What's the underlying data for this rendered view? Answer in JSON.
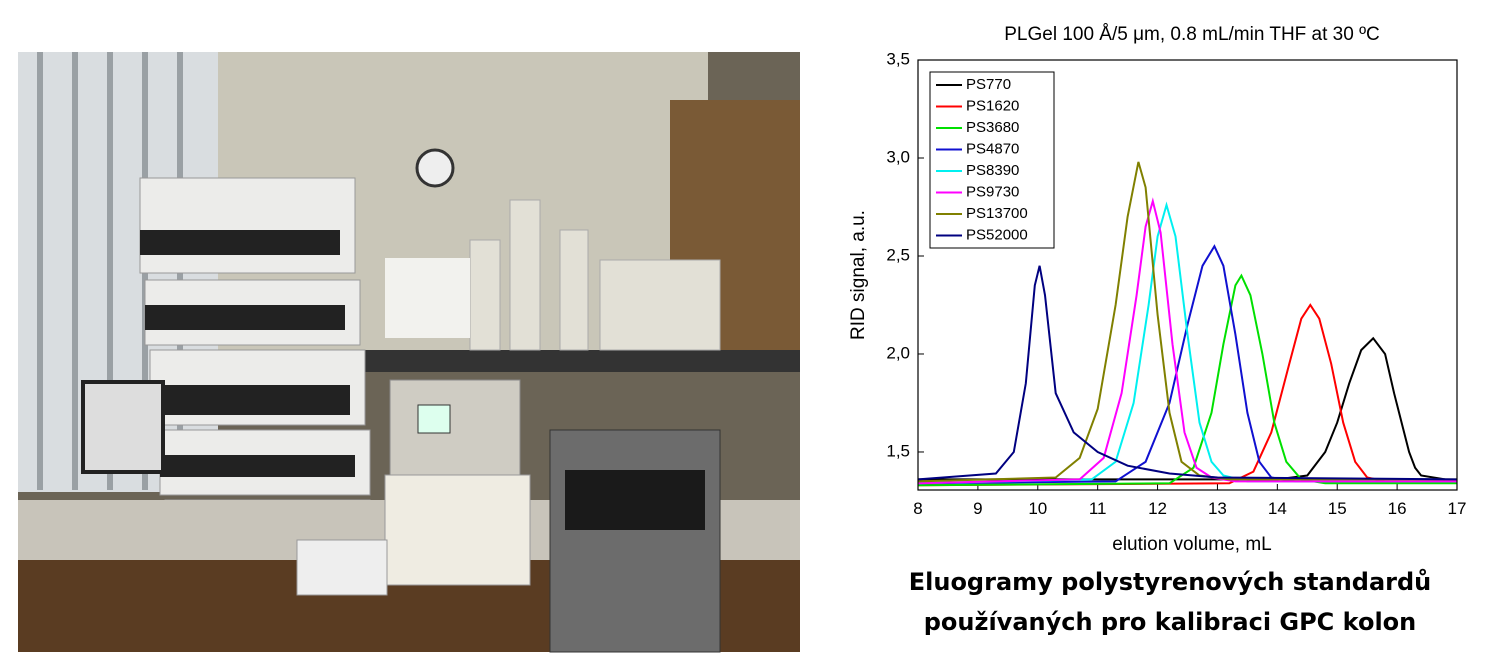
{
  "chart_data": {
    "type": "line",
    "title": "PLGel 100 Å/5 μm, 0.8 mL/min THF at 30 ºC",
    "x_label": "elution volume,  mL",
    "y_label": "RID signal,  a.u.",
    "xlim": [
      8,
      17
    ],
    "ylim": [
      1.306,
      3.5
    ],
    "xticks": [
      8,
      9,
      10,
      11,
      12,
      13,
      14,
      15,
      16,
      17
    ],
    "yticks": [
      {
        "value": 1.5,
        "label": "1,5"
      },
      {
        "value": 2.0,
        "label": "2,0"
      },
      {
        "value": 2.5,
        "label": "2,5"
      },
      {
        "value": 3.0,
        "label": "3,0"
      },
      {
        "value": 3.5,
        "label": "3,5"
      }
    ],
    "legend": "top-left",
    "series": [
      {
        "name": "PS770",
        "color": "#000000",
        "x": [
          8,
          14.0,
          14.5,
          14.8,
          15.0,
          15.2,
          15.4,
          15.6,
          15.8,
          15.95,
          16.1,
          16.2,
          16.3,
          16.4,
          16.8
        ],
        "values": [
          1.36,
          1.36,
          1.38,
          1.5,
          1.65,
          1.85,
          2.02,
          2.08,
          2.0,
          1.8,
          1.62,
          1.5,
          1.42,
          1.38,
          1.36
        ]
      },
      {
        "name": "PS1620",
        "color": "#ff0000",
        "x": [
          8,
          13.2,
          13.6,
          13.9,
          14.2,
          14.4,
          14.55,
          14.7,
          14.9,
          15.1,
          15.3,
          15.5,
          15.8,
          17
        ],
        "values": [
          1.33,
          1.34,
          1.4,
          1.6,
          1.95,
          2.18,
          2.25,
          2.18,
          1.95,
          1.65,
          1.45,
          1.37,
          1.35,
          1.35
        ]
      },
      {
        "name": "PS3680",
        "color": "#00e000",
        "x": [
          8,
          12.2,
          12.6,
          12.9,
          13.1,
          13.3,
          13.4,
          13.55,
          13.75,
          13.95,
          14.15,
          14.4,
          14.8,
          17
        ],
        "values": [
          1.33,
          1.34,
          1.42,
          1.7,
          2.05,
          2.35,
          2.4,
          2.3,
          2.0,
          1.65,
          1.45,
          1.36,
          1.34,
          1.34
        ]
      },
      {
        "name": "PS4870",
        "color": "#1010d0",
        "x": [
          8,
          11.3,
          11.8,
          12.2,
          12.5,
          12.75,
          12.95,
          13.1,
          13.3,
          13.5,
          13.7,
          13.9,
          14.3,
          17
        ],
        "values": [
          1.34,
          1.35,
          1.45,
          1.75,
          2.15,
          2.45,
          2.55,
          2.45,
          2.1,
          1.7,
          1.45,
          1.37,
          1.35,
          1.35
        ]
      },
      {
        "name": "PS8390",
        "color": "#00f0f0",
        "x": [
          8,
          10.9,
          11.3,
          11.6,
          11.85,
          12.0,
          12.15,
          12.3,
          12.5,
          12.7,
          12.9,
          13.1,
          13.5,
          17
        ],
        "values": [
          1.34,
          1.36,
          1.45,
          1.75,
          2.25,
          2.6,
          2.76,
          2.6,
          2.1,
          1.65,
          1.45,
          1.38,
          1.35,
          1.35
        ]
      },
      {
        "name": "PS9730",
        "color": "#ff00ff",
        "x": [
          8,
          10.7,
          11.1,
          11.4,
          11.65,
          11.8,
          11.92,
          12.05,
          12.25,
          12.45,
          12.65,
          12.9,
          13.3,
          17
        ],
        "values": [
          1.34,
          1.36,
          1.47,
          1.8,
          2.3,
          2.65,
          2.78,
          2.62,
          2.05,
          1.6,
          1.42,
          1.37,
          1.35,
          1.35
        ]
      },
      {
        "name": "PS13700",
        "color": "#808000",
        "x": [
          8,
          10.3,
          10.7,
          11.0,
          11.3,
          11.5,
          11.68,
          11.8,
          12.0,
          12.2,
          12.4,
          12.7,
          13.2,
          17
        ],
        "values": [
          1.35,
          1.37,
          1.47,
          1.72,
          2.25,
          2.7,
          2.98,
          2.85,
          2.2,
          1.7,
          1.45,
          1.38,
          1.36,
          1.36
        ]
      },
      {
        "name": "PS52000",
        "color": "#000080",
        "x": [
          8,
          9.3,
          9.6,
          9.8,
          9.95,
          10.03,
          10.12,
          10.3,
          10.6,
          11.0,
          11.5,
          12.2,
          13.0,
          17
        ],
        "values": [
          1.36,
          1.39,
          1.5,
          1.85,
          2.35,
          2.45,
          2.3,
          1.8,
          1.6,
          1.5,
          1.43,
          1.39,
          1.37,
          1.36
        ]
      }
    ]
  },
  "caption": [
    "Eluogramy polystyrenových standardů",
    "používaných pro kalibraci GPC kolon"
  ]
}
